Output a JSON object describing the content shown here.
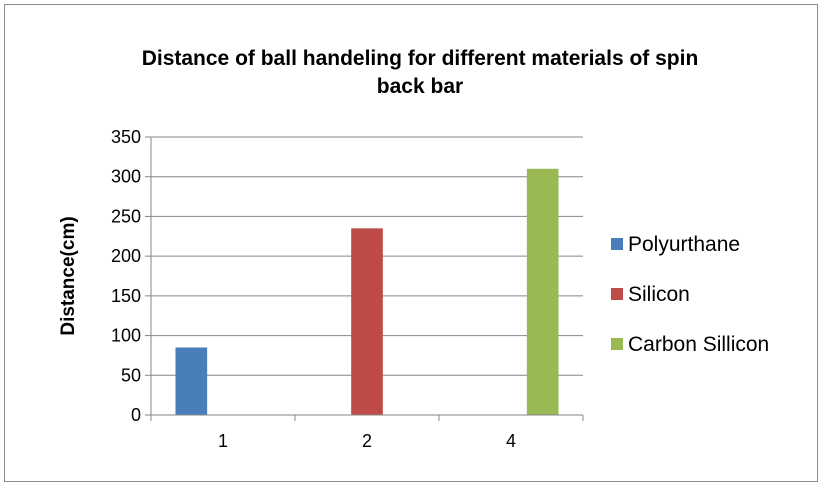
{
  "chart_data": {
    "type": "bar",
    "title_lines": [
      "Distance of ball handeling for different materials of spin",
      "back bar"
    ],
    "xlabel": "",
    "ylabel": "Distance(cm)",
    "categories": [
      "1",
      "2",
      "4"
    ],
    "ylim": [
      0,
      350
    ],
    "yticks": [
      0,
      50,
      100,
      150,
      200,
      250,
      300,
      350
    ],
    "grid": true,
    "legend_position": "right",
    "series": [
      {
        "name": "Polyurthane",
        "color": "#4a7ebb",
        "values": [
          85,
          null,
          null
        ]
      },
      {
        "name": "Silicon",
        "color": "#be4b48",
        "values": [
          null,
          235,
          null
        ]
      },
      {
        "name": "Carbon Sillicon",
        "color": "#98b954",
        "values": [
          null,
          null,
          310
        ]
      }
    ]
  }
}
